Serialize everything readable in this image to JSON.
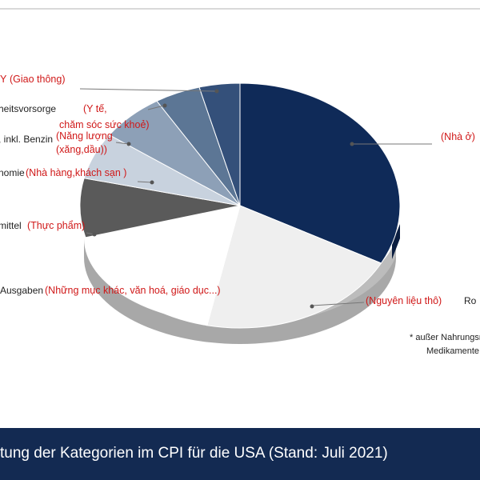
{
  "colors": {
    "nha_o": "#0f2a58",
    "nguyen_lieu": "#efefef",
    "nhung_muc_khac": "#ffffff",
    "thuc_pham": "#5a5a5a",
    "nha_hang": "#c8d2de",
    "nang_luong": "#8da0b7",
    "y_te": "#5c7695",
    "giao_thong": "#34507a",
    "footer_bg": "#132a52",
    "annotation_red": "#d01818"
  },
  "footer": {
    "title": "tung der Kategorien im CPI für die USA (Stand: Juli 2021)"
  },
  "note": {
    "line1": "* außer Nahrungsm",
    "line2": "Medikamente"
  },
  "chart_data": {
    "type": "pie",
    "title": "tung der Kategorien im CPI für die USA (Stand: Juli 2021)",
    "slices": [
      {
        "key": "nha_o",
        "label_de": "",
        "label_vi": "(Nhà ở)",
        "value": 32.8
      },
      {
        "key": "nguyen_lieu",
        "label_de": "Ro",
        "label_vi": "(Nguyên liệu thô)",
        "value": 20.5
      },
      {
        "key": "nhung_muc_khac",
        "label_de": "Ausgaben",
        "label_vi": "(Những mục khác, văn hoá, giáo dục...)",
        "value": 17.5
      },
      {
        "key": "thuc_pham",
        "label_de": "mittel",
        "label_vi": "(Thực phẩm)",
        "value": 7.8
      },
      {
        "key": "nha_hang",
        "label_de": "nomie",
        "label_vi": "(Nhà hàng,khách sạn )",
        "value": 6.2
      },
      {
        "key": "nang_luong",
        "label_de": ", inkl. Benzin",
        "label_vi": "(Năng lượng (xăng,dầu))",
        "value": 6.5
      },
      {
        "key": "y_te",
        "label_de": "heitsvorsorge",
        "label_vi": "(Y tế, chăm sóc sức khoẻ)",
        "value": 4.6
      },
      {
        "key": "giao_thong",
        "label_de": "",
        "label_vi": "(Giao thông)",
        "value": 4.1
      }
    ]
  }
}
